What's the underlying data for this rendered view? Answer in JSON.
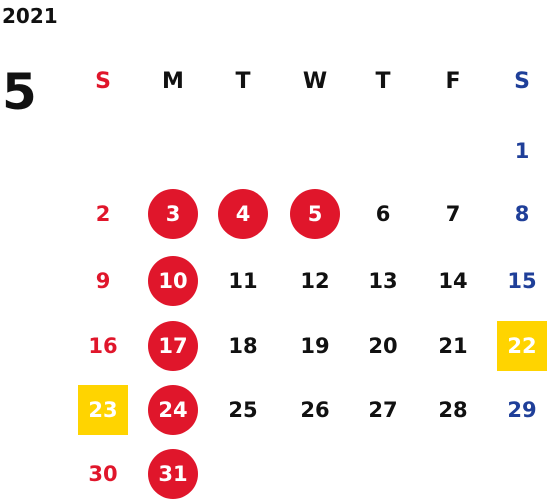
{
  "year": "2021",
  "month": "5",
  "colors": {
    "sunday": "#e0162b",
    "saturday": "#1f3f99",
    "weekday": "#111111",
    "holiday_circle": "#e0162b",
    "highlight_box": "#ffd400",
    "on_fill_text": "#ffffff"
  },
  "weekdays": [
    {
      "label": "S",
      "type": "sunday"
    },
    {
      "label": "M",
      "type": "weekday"
    },
    {
      "label": "T",
      "type": "weekday"
    },
    {
      "label": "W",
      "type": "weekday"
    },
    {
      "label": "T",
      "type": "weekday"
    },
    {
      "label": "F",
      "type": "weekday"
    },
    {
      "label": "S",
      "type": "saturday"
    }
  ],
  "weeks": [
    [
      null,
      null,
      null,
      null,
      null,
      null,
      {
        "d": "1"
      }
    ],
    [
      {
        "d": "2"
      },
      {
        "d": "3",
        "mark": "circle"
      },
      {
        "d": "4",
        "mark": "circle"
      },
      {
        "d": "5",
        "mark": "circle"
      },
      {
        "d": "6"
      },
      {
        "d": "7"
      },
      {
        "d": "8"
      }
    ],
    [
      {
        "d": "9"
      },
      {
        "d": "10",
        "mark": "circle"
      },
      {
        "d": "11"
      },
      {
        "d": "12"
      },
      {
        "d": "13"
      },
      {
        "d": "14"
      },
      {
        "d": "15"
      }
    ],
    [
      {
        "d": "16"
      },
      {
        "d": "17",
        "mark": "circle"
      },
      {
        "d": "18"
      },
      {
        "d": "19"
      },
      {
        "d": "20"
      },
      {
        "d": "21"
      },
      {
        "d": "22",
        "mark": "box"
      }
    ],
    [
      {
        "d": "23",
        "mark": "box"
      },
      {
        "d": "24",
        "mark": "circle"
      },
      {
        "d": "25"
      },
      {
        "d": "26"
      },
      {
        "d": "27"
      },
      {
        "d": "28"
      },
      {
        "d": "29"
      }
    ],
    [
      {
        "d": "30"
      },
      {
        "d": "31",
        "mark": "circle"
      },
      null,
      null,
      null,
      null,
      null
    ]
  ]
}
